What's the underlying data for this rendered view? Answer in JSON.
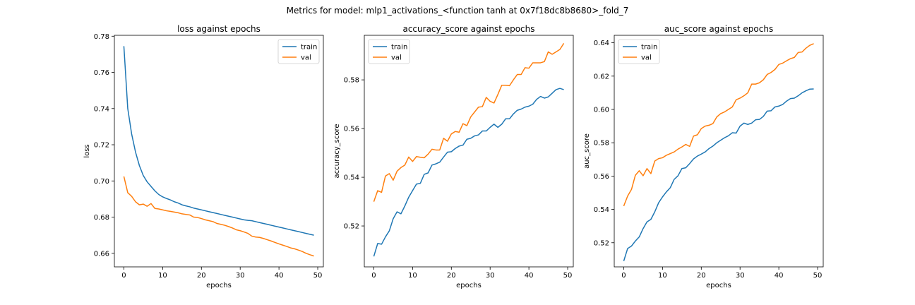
{
  "figure": {
    "suptitle": "Metrics for model: mlp1_activations_<function tanh at 0x7f18dc8b8680>_fold_7"
  },
  "colors": {
    "train": "#1f77b4",
    "val": "#ff7f0e"
  },
  "chart_data": [
    {
      "type": "line",
      "title": "loss against epochs",
      "xlabel": "epochs",
      "ylabel": "loss",
      "xlim": [
        -2.45,
        51.45
      ],
      "ylim": [
        0.6525,
        0.7805
      ],
      "xticks": [
        0,
        10,
        20,
        30,
        40,
        50
      ],
      "xtick_labels": [
        "0",
        "10",
        "20",
        "30",
        "40",
        "50"
      ],
      "yticks": [
        0.66,
        0.68,
        0.7,
        0.72,
        0.74,
        0.76,
        0.78
      ],
      "ytick_labels": [
        "0.66",
        "0.68",
        "0.70",
        "0.72",
        "0.74",
        "0.76",
        "0.78"
      ],
      "grid": false,
      "legend": "upper right",
      "x": [
        0,
        1,
        2,
        3,
        4,
        5,
        6,
        7,
        8,
        9,
        10,
        11,
        12,
        13,
        14,
        15,
        16,
        17,
        18,
        19,
        20,
        21,
        22,
        23,
        24,
        25,
        26,
        27,
        28,
        29,
        30,
        31,
        32,
        33,
        34,
        35,
        36,
        37,
        38,
        39,
        40,
        41,
        42,
        43,
        44,
        45,
        46,
        47,
        48,
        49
      ],
      "series": [
        {
          "name": "train",
          "color_key": "train",
          "values": [
            0.7745,
            0.74,
            0.726,
            0.716,
            0.7085,
            0.703,
            0.6995,
            0.697,
            0.6945,
            0.6925,
            0.6912,
            0.6903,
            0.6895,
            0.6885,
            0.6878,
            0.6868,
            0.6862,
            0.6857,
            0.685,
            0.6845,
            0.684,
            0.6835,
            0.683,
            0.6825,
            0.682,
            0.6815,
            0.681,
            0.6805,
            0.68,
            0.6795,
            0.679,
            0.6785,
            0.6782,
            0.678,
            0.6775,
            0.677,
            0.6765,
            0.676,
            0.6755,
            0.675,
            0.6745,
            0.674,
            0.6735,
            0.673,
            0.6725,
            0.672,
            0.6715,
            0.671,
            0.6705,
            0.67
          ]
        },
        {
          "name": "val",
          "color_key": "val",
          "values": [
            0.7025,
            0.6935,
            0.6915,
            0.6885,
            0.6868,
            0.6872,
            0.686,
            0.6875,
            0.6848,
            0.6845,
            0.684,
            0.6835,
            0.6832,
            0.6828,
            0.6824,
            0.6818,
            0.6815,
            0.6812,
            0.68,
            0.6798,
            0.6792,
            0.6785,
            0.678,
            0.6775,
            0.6765,
            0.676,
            0.6755,
            0.6748,
            0.674,
            0.673,
            0.6725,
            0.6718,
            0.671,
            0.6695,
            0.669,
            0.6688,
            0.6682,
            0.6675,
            0.6668,
            0.666,
            0.6652,
            0.6645,
            0.6638,
            0.663,
            0.6625,
            0.6618,
            0.661,
            0.66,
            0.6592,
            0.6585
          ]
        }
      ]
    },
    {
      "type": "line",
      "title": "accuracy_score against epochs",
      "xlabel": "epochs",
      "ylabel": "accuracy_score",
      "xlim": [
        -2.45,
        51.45
      ],
      "ylim": [
        0.5032,
        0.5983
      ],
      "xticks": [
        0,
        10,
        20,
        30,
        40,
        50
      ],
      "xtick_labels": [
        "0",
        "10",
        "20",
        "30",
        "40",
        "50"
      ],
      "yticks": [
        0.52,
        0.54,
        0.56,
        0.58
      ],
      "ytick_labels": [
        "0.52",
        "0.54",
        "0.56",
        "0.58"
      ],
      "grid": false,
      "legend": "upper left",
      "x": [
        0,
        1,
        2,
        3,
        4,
        5,
        6,
        7,
        8,
        9,
        10,
        11,
        12,
        13,
        14,
        15,
        16,
        17,
        18,
        19,
        20,
        21,
        22,
        23,
        24,
        25,
        26,
        27,
        28,
        29,
        30,
        31,
        32,
        33,
        34,
        35,
        36,
        37,
        38,
        39,
        40,
        41,
        42,
        43,
        44,
        45,
        46,
        47,
        48,
        49
      ],
      "series": [
        {
          "name": "train",
          "color_key": "train",
          "values": [
            0.5075,
            0.5128,
            0.5125,
            0.5155,
            0.518,
            0.523,
            0.5258,
            0.525,
            0.5282,
            0.5318,
            0.5345,
            0.5372,
            0.5375,
            0.5412,
            0.5418,
            0.545,
            0.5455,
            0.5462,
            0.5483,
            0.5503,
            0.5505,
            0.5518,
            0.5528,
            0.5532,
            0.5556,
            0.556,
            0.557,
            0.5574,
            0.559,
            0.559,
            0.5605,
            0.5618,
            0.5605,
            0.5618,
            0.564,
            0.564,
            0.566,
            0.5675,
            0.568,
            0.5688,
            0.5692,
            0.57,
            0.572,
            0.5732,
            0.5725,
            0.573,
            0.5745,
            0.576,
            0.5765,
            0.576
          ]
        },
        {
          "name": "val",
          "color_key": "val",
          "values": [
            0.53,
            0.5345,
            0.5338,
            0.5405,
            0.5415,
            0.5388,
            0.5425,
            0.544,
            0.545,
            0.5483,
            0.5465,
            0.5485,
            0.5482,
            0.548,
            0.5495,
            0.5515,
            0.5512,
            0.5512,
            0.556,
            0.5548,
            0.5578,
            0.5588,
            0.5585,
            0.562,
            0.5612,
            0.5648,
            0.5668,
            0.5688,
            0.569,
            0.5728,
            0.5712,
            0.5705,
            0.574,
            0.5778,
            0.5778,
            0.5776,
            0.58,
            0.5822,
            0.5822,
            0.585,
            0.5848,
            0.587,
            0.587,
            0.587,
            0.5875,
            0.5915,
            0.5905,
            0.5915,
            0.5925,
            0.595
          ]
        }
      ]
    },
    {
      "type": "line",
      "title": "auc_score against epochs",
      "xlabel": "epochs",
      "ylabel": "auc_score",
      "xlim": [
        -2.45,
        51.45
      ],
      "ylim": [
        0.5055,
        0.6445
      ],
      "xticks": [
        0,
        10,
        20,
        30,
        40,
        50
      ],
      "xtick_labels": [
        "0",
        "10",
        "20",
        "30",
        "40",
        "50"
      ],
      "yticks": [
        0.52,
        0.54,
        0.56,
        0.58,
        0.6,
        0.62,
        0.64
      ],
      "ytick_labels": [
        "0.52",
        "0.54",
        "0.56",
        "0.58",
        "0.60",
        "0.62",
        "0.64"
      ],
      "grid": false,
      "legend": "upper left",
      "x": [
        0,
        1,
        2,
        3,
        4,
        5,
        6,
        7,
        8,
        9,
        10,
        11,
        12,
        13,
        14,
        15,
        16,
        17,
        18,
        19,
        20,
        21,
        22,
        23,
        24,
        25,
        26,
        27,
        28,
        29,
        30,
        31,
        32,
        33,
        34,
        35,
        36,
        37,
        38,
        39,
        40,
        41,
        42,
        43,
        44,
        45,
        46,
        47,
        48,
        49
      ],
      "series": [
        {
          "name": "train",
          "color_key": "train",
          "values": [
            0.509,
            0.5165,
            0.518,
            0.521,
            0.5235,
            0.5285,
            0.5325,
            0.534,
            0.5385,
            0.544,
            0.5475,
            0.5505,
            0.553,
            0.558,
            0.5602,
            0.5645,
            0.565,
            0.5675,
            0.5703,
            0.572,
            0.5732,
            0.5745,
            0.5765,
            0.578,
            0.58,
            0.5815,
            0.583,
            0.5842,
            0.586,
            0.5858,
            0.59,
            0.5918,
            0.591,
            0.5918,
            0.5938,
            0.594,
            0.5958,
            0.599,
            0.5992,
            0.6015,
            0.602,
            0.603,
            0.605,
            0.6065,
            0.6068,
            0.6082,
            0.61,
            0.6112,
            0.6122,
            0.6123
          ]
        },
        {
          "name": "val",
          "color_key": "val",
          "values": [
            0.542,
            0.548,
            0.552,
            0.5605,
            0.5632,
            0.5602,
            0.5645,
            0.5615,
            0.569,
            0.5705,
            0.571,
            0.5725,
            0.5735,
            0.5745,
            0.5762,
            0.5775,
            0.579,
            0.5778,
            0.584,
            0.5848,
            0.5885,
            0.59,
            0.5905,
            0.5915,
            0.5955,
            0.5975,
            0.5985,
            0.6,
            0.6015,
            0.6058,
            0.6068,
            0.6082,
            0.61,
            0.6152,
            0.6152,
            0.616,
            0.6178,
            0.621,
            0.6222,
            0.624,
            0.627,
            0.6278,
            0.6292,
            0.6305,
            0.6312,
            0.6342,
            0.6345,
            0.6368,
            0.6385,
            0.6395
          ]
        }
      ]
    }
  ]
}
